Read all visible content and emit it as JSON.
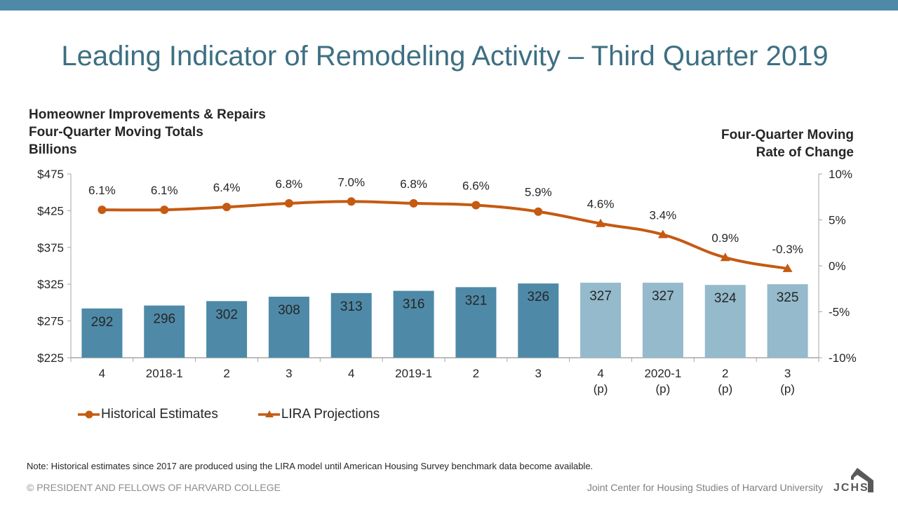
{
  "header": {
    "title": "Leading Indicator of Remodeling Activity – Third Quarter 2019"
  },
  "axis_titles": {
    "left": [
      "Homeowner Improvements & Repairs",
      "Four-Quarter Moving Totals",
      "Billions"
    ],
    "right": [
      "Four-Quarter Moving",
      "Rate of Change"
    ]
  },
  "legend": {
    "items": [
      {
        "label": "Historical Estimates",
        "marker": "circle"
      },
      {
        "label": "LIRA Projections",
        "marker": "triangle"
      }
    ]
  },
  "footer": {
    "note": "Note: Historical estimates since 2017 are produced using the LIRA model until American Housing Survey benchmark data become available.",
    "copyright": "© PRESIDENT AND FELLOWS OF HARVARD COLLEGE",
    "org": "Joint Center for Housing Studies of Harvard University",
    "logo_text": "JCHS"
  },
  "colors": {
    "topbar": "#4e8aa8",
    "title": "#3d6f82",
    "bar_historical": "#4e8aa8",
    "bar_projection": "#94bacc",
    "line": "#c55a11",
    "axis": "#a6a6a6",
    "logo": "#595959"
  },
  "chart_data": {
    "type": "bar+line",
    "title": "Leading Indicator of Remodeling Activity – Third Quarter 2019",
    "categories": [
      [
        "4",
        ""
      ],
      [
        "2018-1",
        ""
      ],
      [
        "2",
        ""
      ],
      [
        "3",
        ""
      ],
      [
        "4",
        ""
      ],
      [
        "2019-1",
        ""
      ],
      [
        "2",
        ""
      ],
      [
        "3",
        ""
      ],
      [
        "4",
        "(p)"
      ],
      [
        "2020-1",
        "(p)"
      ],
      [
        "2",
        "(p)"
      ],
      [
        "3",
        "(p)"
      ]
    ],
    "left_axis": {
      "label": "Homeowner Improvements & Repairs Four-Quarter Moving Totals Billions",
      "ylim": [
        225,
        475
      ],
      "ticks": [
        225,
        275,
        325,
        375,
        425,
        475
      ],
      "tick_labels": [
        "$225",
        "$275",
        "$325",
        "$375",
        "$425",
        "$475"
      ]
    },
    "right_axis": {
      "label": "Four-Quarter Moving Rate of Change",
      "ylim": [
        -10,
        10
      ],
      "ticks": [
        -10,
        -5,
        0,
        5,
        10
      ],
      "tick_labels": [
        "-10%",
        "-5%",
        "0%",
        "5%",
        "10%"
      ]
    },
    "bars": {
      "name": "Homeowner Improvements & Repairs (Billions)",
      "values": [
        292,
        296,
        302,
        308,
        313,
        316,
        321,
        326,
        327,
        327,
        324,
        325
      ],
      "projected": [
        false,
        false,
        false,
        false,
        false,
        false,
        false,
        false,
        true,
        true,
        true,
        true
      ]
    },
    "series": [
      {
        "name": "Historical Estimates",
        "axis": "right",
        "marker": "circle",
        "indices": [
          0,
          1,
          2,
          3,
          4,
          5,
          6,
          7
        ],
        "values": [
          6.1,
          6.1,
          6.4,
          6.8,
          7.0,
          6.8,
          6.6,
          5.9
        ],
        "labels": [
          "6.1%",
          "6.1%",
          "6.4%",
          "6.8%",
          "7.0%",
          "6.8%",
          "6.6%",
          "5.9%"
        ]
      },
      {
        "name": "LIRA Projections",
        "axis": "right",
        "marker": "triangle",
        "indices": [
          8,
          9,
          10,
          11
        ],
        "values": [
          4.6,
          3.4,
          0.9,
          -0.3
        ],
        "labels": [
          "4.6%",
          "3.4%",
          "0.9%",
          "-0.3%"
        ]
      }
    ],
    "grid": false,
    "legend_position": "bottom-left"
  }
}
